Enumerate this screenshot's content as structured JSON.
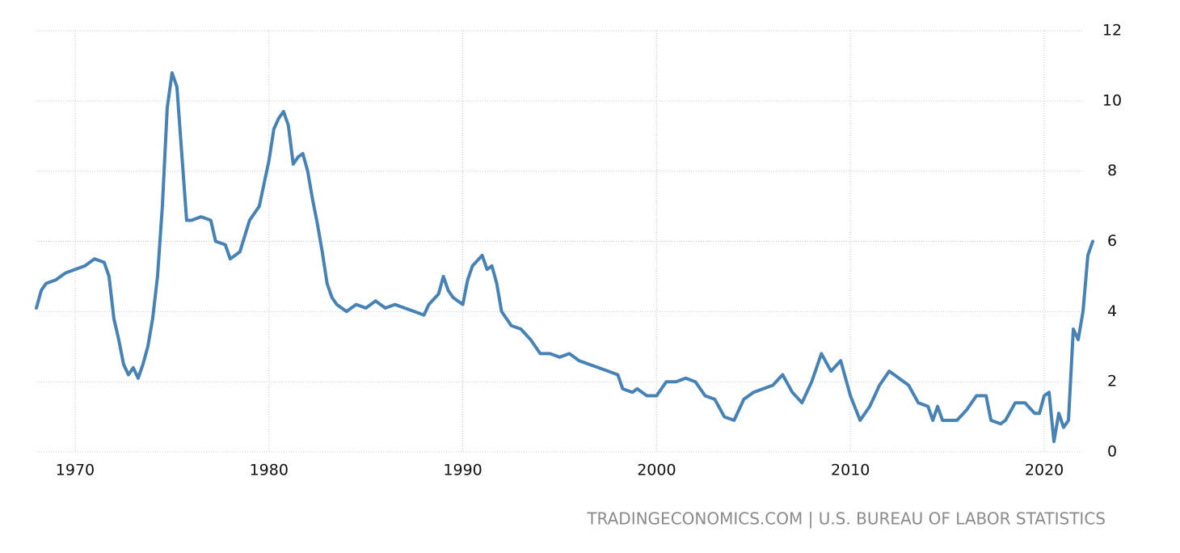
{
  "chart_data": {
    "type": "line",
    "source": "TRADINGECONOMICS.COM | U.S. BUREAU OF LABOR STATISTICS",
    "xlim": [
      1968,
      2022.5
    ],
    "xticks": [
      1970,
      1980,
      1990,
      2000,
      2010,
      2020
    ],
    "ylim": [
      0,
      12
    ],
    "yticks": [
      0,
      2,
      4,
      6,
      8,
      10,
      12
    ],
    "grid": true,
    "series": [
      {
        "color": "#4682b4",
        "x": [
          1968,
          1968.25,
          1968.5,
          1969,
          1969.5,
          1970,
          1970.5,
          1971,
          1971.5,
          1971.75,
          1972,
          1972.25,
          1972.5,
          1972.75,
          1973,
          1973.25,
          1973.5,
          1973.75,
          1974,
          1974.25,
          1974.5,
          1974.75,
          1975,
          1975.25,
          1975.5,
          1975.75,
          1976,
          1976.5,
          1977,
          1977.25,
          1977.75,
          1978,
          1978.5,
          1979,
          1979.25,
          1979.5,
          1980,
          1980.25,
          1980.5,
          1980.75,
          1981,
          1981.25,
          1981.5,
          1981.75,
          1982,
          1982.25,
          1982.5,
          1982.75,
          1983,
          1983.25,
          1983.5,
          1984,
          1984.5,
          1985,
          1985.5,
          1986,
          1986.5,
          1987,
          1987.5,
          1988,
          1988.25,
          1988.75,
          1989,
          1989.25,
          1989.5,
          1990,
          1990.25,
          1990.5,
          1991,
          1991.25,
          1991.5,
          1991.75,
          1992,
          1992.5,
          1993,
          1993.5,
          1994,
          1994.5,
          1995,
          1995.5,
          1996,
          1996.5,
          1997,
          1997.5,
          1998,
          1998.25,
          1998.75,
          1999,
          1999.5,
          2000,
          2000.5,
          2001,
          2001.5,
          2002,
          2002.5,
          2003,
          2003.5,
          2004,
          2004.5,
          2005,
          2005.5,
          2006,
          2006.5,
          2007,
          2007.5,
          2008,
          2008.5,
          2009,
          2009.5,
          2010,
          2010.5,
          2011,
          2011.5,
          2012,
          2012.5,
          2013,
          2013.5,
          2014,
          2014.25,
          2014.5,
          2014.75,
          2015.5,
          2016,
          2016.5,
          2016.75,
          2017,
          2017.25,
          2017.75,
          2018,
          2018.5,
          2019,
          2019.5,
          2019.75,
          2020,
          2020.25,
          2020.5,
          2020.75,
          2021,
          2021.25,
          2021.5,
          2021.75,
          2022,
          2022.25,
          2022.5
        ],
        "values": [
          4.1,
          4.6,
          4.8,
          4.9,
          5.1,
          5.2,
          5.3,
          5.5,
          5.4,
          5.0,
          3.8,
          3.2,
          2.5,
          2.2,
          2.4,
          2.1,
          2.5,
          3.0,
          3.8,
          5.0,
          7.0,
          9.8,
          10.8,
          10.4,
          8.5,
          6.6,
          6.6,
          6.7,
          6.6,
          6.0,
          5.9,
          5.5,
          5.7,
          6.6,
          6.8,
          7.0,
          8.3,
          9.2,
          9.5,
          9.7,
          9.3,
          8.2,
          8.4,
          8.5,
          8.0,
          7.2,
          6.5,
          5.7,
          4.8,
          4.4,
          4.2,
          4.0,
          4.2,
          4.1,
          4.3,
          4.1,
          4.2,
          4.1,
          4.0,
          3.9,
          4.2,
          4.5,
          5.0,
          4.6,
          4.4,
          4.2,
          4.9,
          5.3,
          5.6,
          5.2,
          5.3,
          4.8,
          4.0,
          3.6,
          3.5,
          3.2,
          2.8,
          2.8,
          2.7,
          2.8,
          2.6,
          2.5,
          2.4,
          2.3,
          2.2,
          1.8,
          1.7,
          1.8,
          1.6,
          1.6,
          2.0,
          2.0,
          2.1,
          2.0,
          1.6,
          1.5,
          1.0,
          0.9,
          1.5,
          1.7,
          1.8,
          1.9,
          2.2,
          1.7,
          1.4,
          2.0,
          2.8,
          2.3,
          2.6,
          1.6,
          0.9,
          1.3,
          1.9,
          2.3,
          2.1,
          1.9,
          1.4,
          1.3,
          0.9,
          1.3,
          0.9,
          0.9,
          1.2,
          1.6,
          1.6,
          1.6,
          0.9,
          0.8,
          0.9,
          1.4,
          1.4,
          1.1,
          1.1,
          1.6,
          1.7,
          0.3,
          1.1,
          0.7,
          0.9,
          3.5,
          3.2,
          4.0,
          5.6,
          6.0
        ]
      }
    ]
  }
}
